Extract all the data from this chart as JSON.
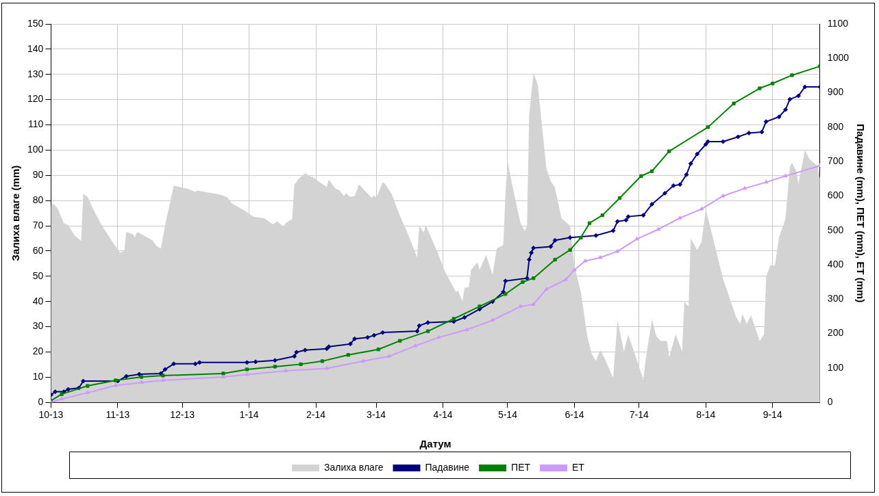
{
  "chart_data": {
    "type": "line",
    "xlabel": "Датум",
    "ylabel": "Залиха влаге (mm)",
    "y2label": "Падавине (mm), ПЕТ (mm), ЕТ (mm)",
    "xlim": [
      "2013-10-01",
      "2014-09-23"
    ],
    "xticks": [
      {
        "value": "2013-10-01",
        "label": "10-13"
      },
      {
        "value": "2013-11-01",
        "label": "11-13"
      },
      {
        "value": "2013-12-01",
        "label": "12-13"
      },
      {
        "value": "2014-01-01",
        "label": "1-14"
      },
      {
        "value": "2014-02-01",
        "label": "2-14"
      },
      {
        "value": "2014-03-01",
        "label": "3-14"
      },
      {
        "value": "2014-04-01",
        "label": "4-14"
      },
      {
        "value": "2014-05-01",
        "label": "5-14"
      },
      {
        "value": "2014-06-01",
        "label": "6-14"
      },
      {
        "value": "2014-07-01",
        "label": "7-14"
      },
      {
        "value": "2014-08-01",
        "label": "8-14"
      },
      {
        "value": "2014-09-01",
        "label": "9-14"
      }
    ],
    "ylim": [
      0,
      150
    ],
    "yticks": [
      0,
      10,
      20,
      30,
      40,
      50,
      60,
      70,
      80,
      90,
      100,
      110,
      120,
      130,
      140,
      150
    ],
    "y2lim": [
      0,
      1100
    ],
    "y2ticks": [
      0,
      100,
      200,
      300,
      400,
      500,
      600,
      700,
      800,
      900,
      1000,
      1100
    ],
    "grid": true,
    "legend": "bottom",
    "series": [
      {
        "name": "Залиха влаге",
        "type": "area",
        "color": "#d3d3d3",
        "marker": "none",
        "x": [
          "2013-10-01",
          "2013-10-02",
          "2013-10-04",
          "2013-10-07",
          "2013-10-09",
          "2013-10-12",
          "2013-10-15",
          "2013-10-16",
          "2013-10-18",
          "2013-10-21",
          "2013-10-24",
          "2013-10-29",
          "2013-11-02",
          "2013-11-04",
          "2013-11-05",
          "2013-11-08",
          "2013-11-09",
          "2013-11-10",
          "2013-11-13",
          "2013-11-17",
          "2013-11-19",
          "2013-11-21",
          "2013-11-23",
          "2013-11-27",
          "2013-12-04",
          "2013-12-07",
          "2013-12-08",
          "2013-12-19",
          "2013-12-22",
          "2013-12-24",
          "2013-12-30",
          "2014-01-03",
          "2014-01-08",
          "2014-01-12",
          "2014-01-14",
          "2014-01-17",
          "2014-01-18",
          "2014-01-21",
          "2014-01-22",
          "2014-01-24",
          "2014-01-27",
          "2014-01-31",
          "2014-02-06",
          "2014-02-07",
          "2014-02-10",
          "2014-02-12",
          "2014-02-14",
          "2014-02-15",
          "2014-02-17",
          "2014-02-19",
          "2014-02-21",
          "2014-02-27",
          "2014-02-28",
          "2014-03-01",
          "2014-03-04",
          "2014-03-05",
          "2014-03-08",
          "2014-03-12",
          "2014-03-16",
          "2014-03-20",
          "2014-03-21",
          "2014-03-23",
          "2014-03-24",
          "2014-03-29",
          "2014-04-02",
          "2014-04-07",
          "2014-04-08",
          "2014-04-10",
          "2014-04-11",
          "2014-04-13",
          "2014-04-14",
          "2014-04-17",
          "2014-04-18",
          "2014-04-21",
          "2014-04-24",
          "2014-04-26",
          "2014-04-29",
          "2014-04-30",
          "2014-05-01",
          "2014-05-03",
          "2014-05-07",
          "2014-05-09",
          "2014-05-10",
          "2014-05-11",
          "2014-05-13",
          "2014-05-15",
          "2014-05-19",
          "2014-05-21",
          "2014-05-23",
          "2014-05-26",
          "2014-05-30",
          "2014-06-01",
          "2014-06-04",
          "2014-06-07",
          "2014-06-09",
          "2014-06-11",
          "2014-06-13",
          "2014-06-15",
          "2014-06-19",
          "2014-06-21",
          "2014-06-24",
          "2014-06-26",
          "2014-06-29",
          "2014-07-03",
          "2014-07-04",
          "2014-07-07",
          "2014-07-09",
          "2014-07-11",
          "2014-07-14",
          "2014-07-15",
          "2014-07-18",
          "2014-07-21",
          "2014-07-22",
          "2014-07-24",
          "2014-07-25",
          "2014-07-28",
          "2014-07-30",
          "2014-08-01",
          "2014-08-09",
          "2014-08-15",
          "2014-08-17",
          "2014-08-18",
          "2014-08-20",
          "2014-08-22",
          "2014-08-26",
          "2014-08-28",
          "2014-08-29",
          "2014-08-31",
          "2014-09-02",
          "2014-09-04",
          "2014-09-06",
          "2014-09-07",
          "2014-09-09",
          "2014-09-10",
          "2014-09-12",
          "2014-09-13",
          "2014-09-16",
          "2014-09-18",
          "2014-09-22",
          "2014-09-23"
        ],
        "values": [
          78,
          78.8,
          77,
          71,
          70.3,
          66.2,
          64,
          82.6,
          81.5,
          76,
          71,
          64.3,
          59.4,
          60,
          67.6,
          66.7,
          65.4,
          67.6,
          66.2,
          64.3,
          62,
          61,
          70.3,
          85.9,
          84.5,
          83.4,
          84,
          82.3,
          81.2,
          78.8,
          76,
          73.6,
          73,
          70.6,
          71.7,
          69.7,
          71,
          72.8,
          86.2,
          88.6,
          90.8,
          89,
          85.3,
          88.3,
          84.8,
          84,
          81.8,
          82.9,
          81.5,
          81.8,
          86.4,
          81,
          82.3,
          81,
          87.3,
          86.7,
          82.9,
          74,
          66.2,
          57.4,
          70.3,
          67.3,
          70.3,
          60.4,
          51.7,
          43.8,
          44.3,
          40,
          45.4,
          45.7,
          52.5,
          55.5,
          52.5,
          58.5,
          50.6,
          61,
          62.4,
          82.9,
          95.5,
          86.7,
          71,
          68,
          70.3,
          114,
          130.7,
          125.8,
          92.7,
          87.8,
          85,
          73,
          70,
          54,
          43.8,
          26,
          19.4,
          16.4,
          20.8,
          17.5,
          9.6,
          32.5,
          20.2,
          26.8,
          19.4,
          8.8,
          16.4,
          33,
          26.3,
          24.3,
          24.3,
          18,
          27,
          20.2,
          40,
          38,
          65,
          60.4,
          63.5,
          76.6,
          49,
          34,
          31,
          35,
          31,
          34.5,
          24.3,
          26.8,
          49.8,
          54.4,
          54,
          65.4,
          70.3,
          73,
          93.3,
          95,
          91.6,
          86.7,
          100,
          96.6,
          93.5,
          88.6
        ]
      },
      {
        "name": "Падавине",
        "axis": "y2",
        "color": "#000080",
        "marker": "diamond",
        "x": [
          "2013-10-01",
          "2013-10-03",
          "2013-10-07",
          "2013-10-09",
          "2013-10-14",
          "2013-10-16",
          "2013-11-01",
          "2013-11-05",
          "2013-11-11",
          "2013-11-21",
          "2013-11-23",
          "2013-11-27",
          "2013-12-07",
          "2013-12-09",
          "2013-12-31",
          "2014-01-04",
          "2014-01-13",
          "2014-01-22",
          "2014-01-23",
          "2014-01-27",
          "2014-02-06",
          "2014-02-07",
          "2014-02-17",
          "2014-02-19",
          "2014-02-25",
          "2014-02-28",
          "2014-03-04",
          "2014-03-20",
          "2014-03-21",
          "2014-03-25",
          "2014-04-06",
          "2014-04-11",
          "2014-04-18",
          "2014-04-24",
          "2014-04-29",
          "2014-04-30",
          "2014-05-10",
          "2014-05-11",
          "2014-05-12",
          "2014-05-13",
          "2014-05-21",
          "2014-05-23",
          "2014-05-30",
          "2014-06-11",
          "2014-06-19",
          "2014-06-21",
          "2014-06-25",
          "2014-06-26",
          "2014-07-03",
          "2014-07-07",
          "2014-07-13",
          "2014-07-17",
          "2014-07-20",
          "2014-07-23",
          "2014-07-25",
          "2014-07-28",
          "2014-08-01",
          "2014-08-02",
          "2014-08-09",
          "2014-08-16",
          "2014-08-21",
          "2014-08-27",
          "2014-08-29",
          "2014-09-04",
          "2014-09-07",
          "2014-09-09",
          "2014-09-13",
          "2014-09-16",
          "2014-09-23"
        ],
        "values": [
          22,
          31,
          31,
          38,
          42,
          62,
          62,
          76,
          82,
          84,
          96,
          112,
          112,
          116,
          116,
          118,
          122,
          134,
          146,
          152,
          156,
          162,
          170,
          185,
          189,
          195,
          203,
          207,
          223,
          232,
          235,
          247,
          271,
          293,
          321,
          353,
          361,
          415,
          435,
          449,
          453,
          471,
          479,
          485,
          499,
          526,
          530,
          540,
          544,
          576,
          608,
          630,
          633,
          662,
          694,
          722,
          750,
          758,
          758,
          772,
          783,
          786,
          816,
          830,
          851,
          881,
          891,
          917,
          917
        ]
      },
      {
        "name": "ПЕТ",
        "axis": "y2",
        "color": "#008000",
        "marker": "square",
        "x": [
          "2013-10-01",
          "2013-10-06",
          "2013-10-18",
          "2013-10-31",
          "2013-11-12",
          "2013-11-22",
          "2013-12-20",
          "2013-12-31",
          "2014-01-13",
          "2014-01-25",
          "2014-02-04",
          "2014-02-16",
          "2014-03-02",
          "2014-03-12",
          "2014-03-25",
          "2014-04-06",
          "2014-04-18",
          "2014-04-30",
          "2014-05-08",
          "2014-05-13",
          "2014-05-23",
          "2014-05-30",
          "2014-06-04",
          "2014-06-08",
          "2014-06-14",
          "2014-06-22",
          "2014-07-02",
          "2014-07-07",
          "2014-07-15",
          "2014-08-02",
          "2014-08-14",
          "2014-08-26",
          "2014-09-01",
          "2014-09-10",
          "2014-09-23"
        ],
        "values": [
          5,
          24,
          48,
          64,
          74,
          78,
          84,
          96,
          104,
          111,
          120,
          138,
          154,
          179,
          207,
          243,
          279,
          315,
          350,
          361,
          415,
          443,
          479,
          521,
          544,
          594,
          658,
          672,
          730,
          800,
          869,
          913,
          927,
          951,
          977
        ]
      },
      {
        "name": "ЕТ",
        "axis": "y2",
        "color": "#cc99ff",
        "marker": "triangle",
        "x": [
          "2013-10-01",
          "2013-10-06",
          "2013-10-18",
          "2013-10-31",
          "2013-11-12",
          "2013-11-22",
          "2013-12-20",
          "2013-12-31",
          "2014-01-18",
          "2014-02-06",
          "2014-02-23",
          "2014-03-07",
          "2014-03-19",
          "2014-03-30",
          "2014-04-12",
          "2014-04-24",
          "2014-05-07",
          "2014-05-13",
          "2014-05-19",
          "2014-05-28",
          "2014-06-01",
          "2014-06-06",
          "2014-06-13",
          "2014-06-21",
          "2014-06-30",
          "2014-07-10",
          "2014-07-20",
          "2014-07-30",
          "2014-08-09",
          "2014-08-19",
          "2014-08-29",
          "2014-09-07",
          "2014-09-23"
        ],
        "values": [
          0,
          10,
          28,
          49,
          58,
          64,
          74,
          81,
          92,
          99,
          120,
          134,
          164,
          189,
          211,
          239,
          279,
          285,
          329,
          357,
          385,
          411,
          421,
          439,
          475,
          503,
          536,
          562,
          600,
          622,
          640,
          658,
          688
        ]
      }
    ]
  }
}
